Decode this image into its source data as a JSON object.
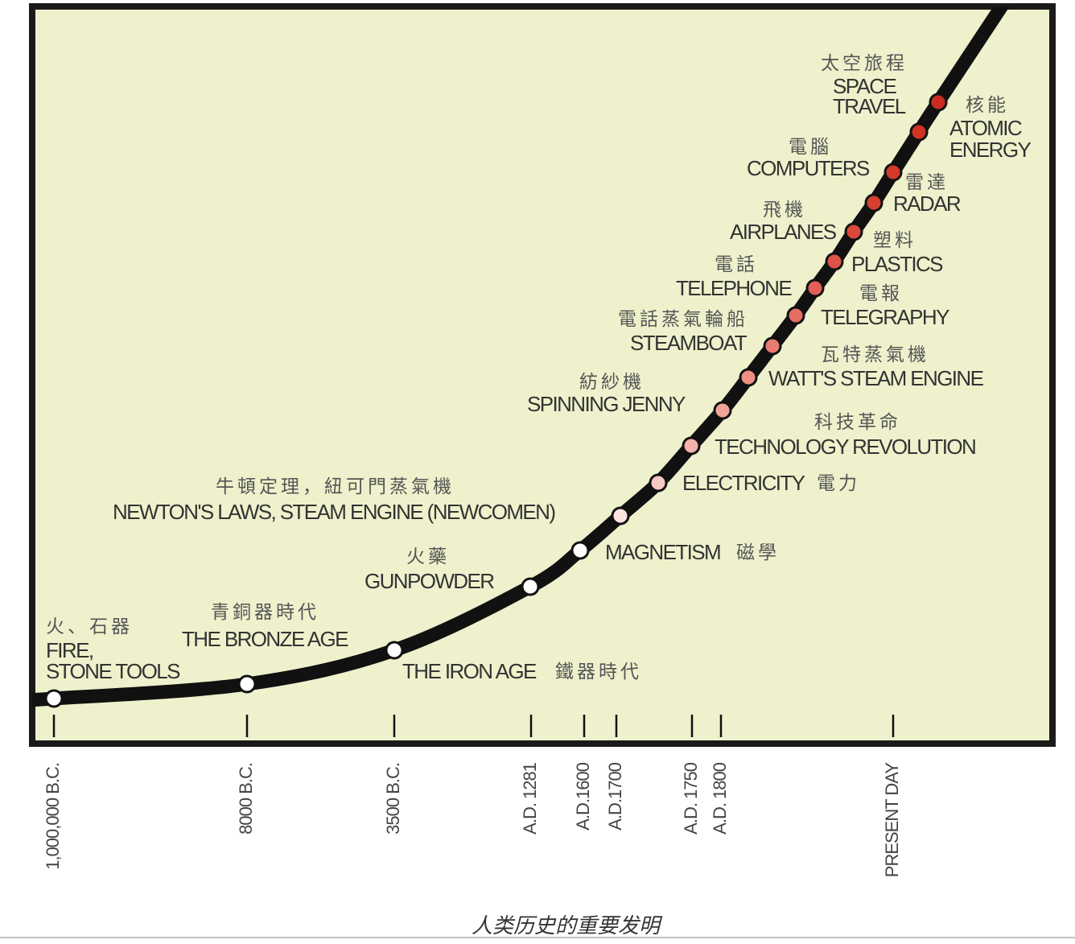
{
  "labels": [
    {
      "zh": "火、石器",
      "en": [
        "FIRE,",
        "STONE TOOLS"
      ]
    },
    {
      "zh": "青銅器時代",
      "en": [
        "THE BRONZE AGE"
      ]
    },
    {
      "zh": "鐵器時代",
      "en": [
        "THE IRON AGE"
      ]
    },
    {
      "zh": "火藥",
      "en": [
        "GUNPOWDER"
      ]
    },
    {
      "zh": "磁學",
      "en": [
        "MAGNETISM"
      ]
    },
    {
      "zh": "牛頓定理，紐可門蒸氣機",
      "en": [
        "NEWTON'S LAWS, STEAM ENGINE (NEWCOMEN)"
      ]
    },
    {
      "zh": "電力",
      "en": [
        "ELECTRICITY"
      ]
    },
    {
      "zh": "科技革命",
      "en": [
        "TECHNOLOGY REVOLUTION"
      ]
    },
    {
      "zh": "紡紗機",
      "en": [
        "SPINNING JENNY"
      ]
    },
    {
      "zh": "瓦特蒸氣機",
      "en": [
        "WATT'S STEAM ENGINE"
      ]
    },
    {
      "zh": "電話蒸氣輪船",
      "en": [
        "STEAMBOAT"
      ]
    },
    {
      "zh": "電報",
      "en": [
        "TELEGRAPHY"
      ]
    },
    {
      "zh": "電話",
      "en": [
        "TELEPHONE"
      ]
    },
    {
      "zh": "塑料",
      "en": [
        "PLASTICS"
      ]
    },
    {
      "zh": "飛機",
      "en": [
        "AIRPLANES"
      ]
    },
    {
      "zh": "雷達",
      "en": [
        "RADAR"
      ]
    },
    {
      "zh": "電腦",
      "en": [
        "COMPUTERS"
      ]
    },
    {
      "zh": "核能",
      "en": [
        "ATOMIC",
        "ENERGY"
      ]
    },
    {
      "zh": "太空旅程",
      "en": [
        "SPACE",
        "TRAVEL"
      ]
    }
  ],
  "axis_ticks": [
    "1,000,000 B.C.",
    "8000 B.C.",
    "3500 B.C.",
    "A.D. 1281",
    "A.D.1600",
    "A.D.1700",
    "A.D. 1750",
    "A.D. 1800",
    "PRESENT DAY"
  ],
  "caption": "人类历史的重要发明"
}
